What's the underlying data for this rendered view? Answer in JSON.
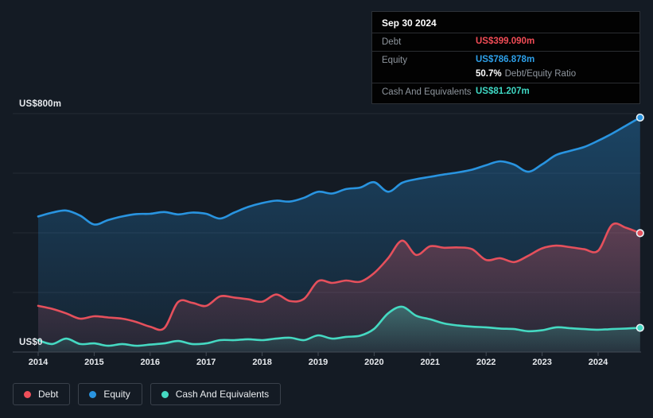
{
  "tooltip": {
    "date": "Sep 30 2024",
    "debt_label": "Debt",
    "debt_value": "US$399.090m",
    "equity_label": "Equity",
    "equity_value": "US$786.878m",
    "ratio_value": "50.7%",
    "ratio_label": "Debt/Equity Ratio",
    "cash_label": "Cash And Equivalents",
    "cash_value": "US$81.207m"
  },
  "axis": {
    "y_top_label": "US$800m",
    "y_zero_label": "US$0"
  },
  "legend": {
    "items": [
      {
        "label": "Debt",
        "color": "#ef4f5a"
      },
      {
        "label": "Equity",
        "color": "#2994e0"
      },
      {
        "label": "Cash And Equivalents",
        "color": "#45d9c2"
      }
    ]
  },
  "colors": {
    "background": "#141b24",
    "grid": "#242b35",
    "axis": "#434b56",
    "tick_label": "#e7eaee",
    "dot_stroke": "#e8f1f7",
    "debt": "#e5505c",
    "equity": "#2994e0",
    "cash": "#45d9c2"
  },
  "chart_data": {
    "type": "area",
    "unit": "US$m",
    "ylim": [
      0,
      800
    ],
    "y_gridlines": [
      200,
      400,
      600,
      800
    ],
    "x_ticks": [
      "2014",
      "2015",
      "2016",
      "2017",
      "2018",
      "2019",
      "2020",
      "2021",
      "2022",
      "2023",
      "2024"
    ],
    "legend_position": "bottom-left",
    "grid": true,
    "draw_order": [
      1,
      0,
      2
    ],
    "x": [
      2014,
      2014.25,
      2014.5,
      2014.75,
      2015,
      2015.25,
      2015.5,
      2015.75,
      2016,
      2016.25,
      2016.5,
      2016.75,
      2017,
      2017.25,
      2017.5,
      2017.75,
      2018,
      2018.25,
      2018.5,
      2018.75,
      2019,
      2019.25,
      2019.5,
      2019.75,
      2020,
      2020.25,
      2020.5,
      2020.75,
      2021,
      2021.25,
      2021.5,
      2021.75,
      2022,
      2022.25,
      2022.5,
      2022.75,
      2023,
      2023.25,
      2023.5,
      2023.75,
      2024,
      2024.25,
      2024.5,
      2024.75
    ],
    "series": [
      {
        "name": "Debt",
        "color": "#e5505c",
        "values": [
          155,
          145,
          130,
          112,
          120,
          116,
          112,
          101,
          85,
          80,
          168,
          165,
          155,
          187,
          183,
          177,
          169,
          193,
          171,
          179,
          238,
          232,
          240,
          236,
          265,
          315,
          374,
          326,
          355,
          350,
          351,
          345,
          309,
          315,
          302,
          323,
          348,
          357,
          352,
          345,
          340,
          427,
          417,
          399.09
        ]
      },
      {
        "name": "Equity",
        "color": "#2994e0",
        "values": [
          455,
          468,
          475,
          458,
          428,
          443,
          455,
          463,
          464,
          470,
          462,
          468,
          464,
          448,
          468,
          487,
          500,
          508,
          505,
          518,
          538,
          532,
          547,
          552,
          570,
          538,
          568,
          580,
          588,
          596,
          603,
          612,
          627,
          640,
          629,
          605,
          630,
          661,
          675,
          688,
          709,
          733,
          760,
          786.878
        ]
      },
      {
        "name": "Cash And Equivalents",
        "color": "#45d9c2",
        "values": [
          40,
          27,
          45,
          27,
          29,
          21,
          27,
          21,
          25,
          29,
          37,
          27,
          29,
          40,
          40,
          43,
          40,
          45,
          48,
          40,
          56,
          45,
          51,
          55,
          78,
          130,
          152,
          122,
          110,
          96,
          89,
          85,
          83,
          79,
          77,
          70,
          73,
          83,
          80,
          77,
          75,
          77,
          79,
          81.207
        ]
      }
    ]
  }
}
